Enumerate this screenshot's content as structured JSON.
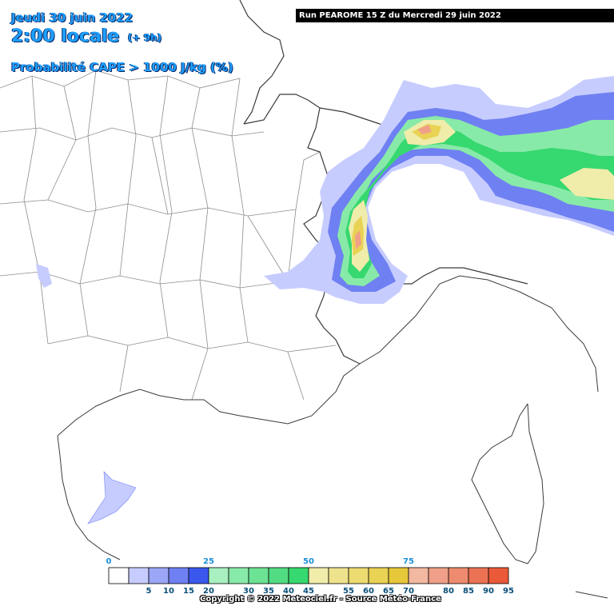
{
  "header": {
    "date": "Jeudi 30 juin 2022",
    "time": "2:00 locale",
    "offset": "(+ 9h)",
    "parameter": "Probabilité CAPE > 1000 J/kg (%)",
    "run": "Run PEAROME 15 Z du Mercredi 29 juin 2022"
  },
  "legend": {
    "bins": [
      {
        "label": "0",
        "color": "#ffffff"
      },
      {
        "label": "5",
        "color": "#c7ccff"
      },
      {
        "label": "10",
        "color": "#9ba6f7"
      },
      {
        "label": "15",
        "color": "#6f80f2"
      },
      {
        "label": "20",
        "color": "#3b58ee"
      },
      {
        "label": "25",
        "color": "#a8f0c0"
      },
      {
        "label": "30",
        "color": "#88eaa8"
      },
      {
        "label": "35",
        "color": "#6ce394"
      },
      {
        "label": "40",
        "color": "#52dc82"
      },
      {
        "label": "45",
        "color": "#36d870"
      },
      {
        "label": "50",
        "color": "#f0ecaa"
      },
      {
        "label": "55",
        "color": "#eee38c"
      },
      {
        "label": "60",
        "color": "#ecdb70"
      },
      {
        "label": "65",
        "color": "#e9d254"
      },
      {
        "label": "70",
        "color": "#e6c83a"
      },
      {
        "label": "75",
        "color": "#f2b8a0"
      },
      {
        "label": "80",
        "color": "#f0a088"
      },
      {
        "label": "85",
        "color": "#ee8a6e"
      },
      {
        "label": "90",
        "color": "#ec7254"
      },
      {
        "label": "95",
        "color": "#ea5a38"
      }
    ]
  },
  "footer": {
    "copyright": "Copyright © 2022 Meteociel.fr - Source Météo-France"
  }
}
